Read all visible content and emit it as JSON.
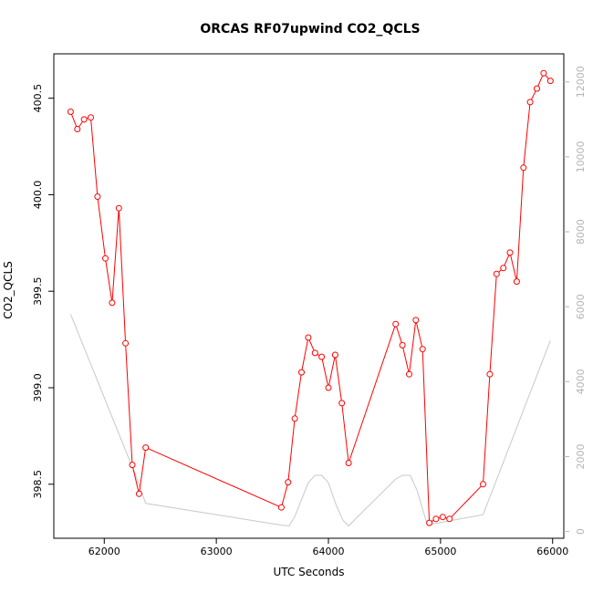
{
  "chart_data": {
    "type": "line",
    "title": "ORCAS RF07upwind CO2_QCLS",
    "xlabel": "UTC Seconds",
    "ylabel": "CO2_QCLS",
    "xlim": [
      61550,
      66100
    ],
    "ylim": [
      398.22,
      400.73
    ],
    "y2lim": [
      -180,
      12750
    ],
    "grid": false,
    "x_ticks": [
      62000,
      63000,
      64000,
      65000,
      66000
    ],
    "x_tick_labels": [
      "62000",
      "63000",
      "64000",
      "65000",
      "66000"
    ],
    "y_ticks": [
      398.5,
      399.0,
      399.5,
      400.0,
      400.5
    ],
    "y_tick_labels": [
      "398.5",
      "399.0",
      "399.5",
      "400.0",
      "400.5"
    ],
    "y2_ticks": [
      0,
      2000,
      4000,
      6000,
      8000,
      10000,
      12000
    ],
    "y2_tick_labels": [
      "0",
      "2000",
      "4000",
      "6000",
      "8000",
      "10000",
      "12000"
    ],
    "series": [
      {
        "color": "#ff0000",
        "axis": "left",
        "marker": "open-circle",
        "x": [
          61700,
          61760,
          61820,
          61880,
          61940,
          62010,
          62070,
          62130,
          62190,
          62250,
          62310,
          62370,
          63580,
          63640,
          63700,
          63760,
          63820,
          63880,
          63940,
          64000,
          64060,
          64120,
          64180,
          64600,
          64660,
          64720,
          64780,
          64840,
          64900,
          64960,
          65020,
          65080,
          65380,
          65440,
          65500,
          65560,
          65620,
          65680,
          65740,
          65800,
          65860,
          65920,
          65980
        ],
        "values": [
          400.43,
          400.34,
          400.39,
          400.4,
          399.99,
          399.67,
          399.44,
          399.93,
          399.23,
          398.6,
          398.45,
          398.69,
          398.38,
          398.51,
          398.84,
          399.08,
          399.26,
          399.18,
          399.16,
          399.0,
          399.17,
          398.92,
          398.61,
          399.33,
          399.22,
          399.07,
          399.35,
          399.2,
          398.3,
          398.32,
          398.33,
          398.32,
          398.5,
          399.07,
          399.59,
          399.62,
          399.7,
          399.55,
          400.14,
          400.48,
          400.55,
          400.63,
          400.59
        ]
      },
      {
        "color": "#c8c8c8",
        "axis": "right",
        "marker": "none",
        "x": [
          61700,
          62280,
          62370,
          63580,
          63650,
          63700,
          63820,
          63880,
          63940,
          64000,
          64070,
          64130,
          64180,
          64600,
          64660,
          64730,
          64790,
          64870,
          64930,
          65380,
          65980
        ],
        "values": [
          5800,
          1500,
          750,
          170,
          150,
          400,
          1300,
          1500,
          1500,
          1300,
          700,
          300,
          150,
          1400,
          1500,
          1500,
          1100,
          300,
          200,
          450,
          5100
        ]
      }
    ]
  }
}
